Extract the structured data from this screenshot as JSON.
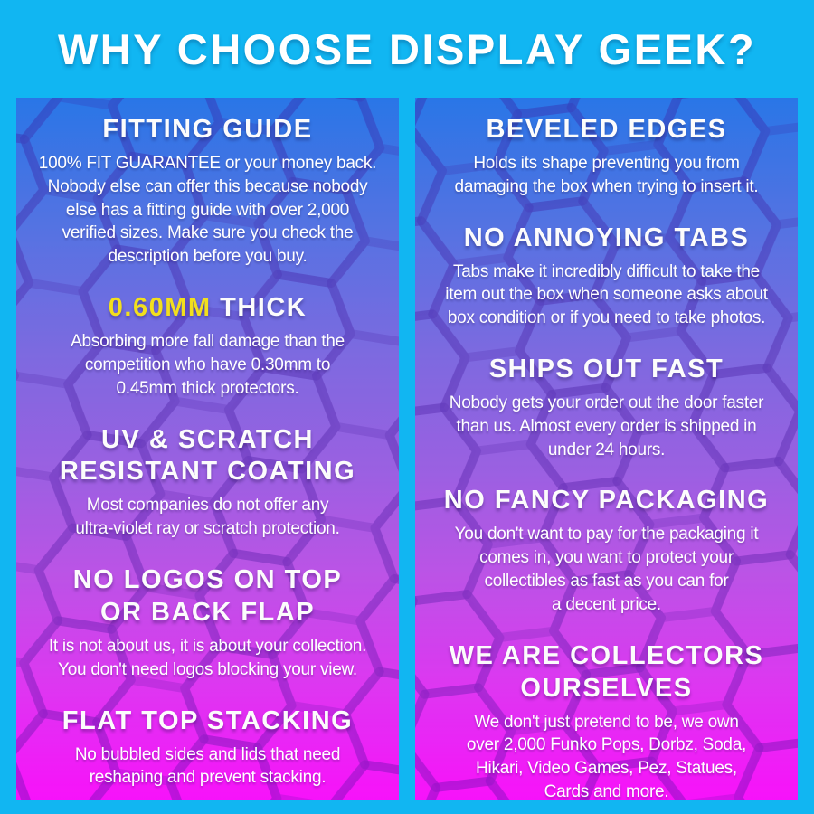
{
  "header": {
    "title": "WHY CHOOSE DISPLAY GEEK?"
  },
  "colors": {
    "frame_cyan": "#11B6F2",
    "gradient_top": "#1E6FE6",
    "gradient_middle": "#9358DF",
    "gradient_bottom": "#F705FA",
    "accent_yellow": "#F2DF1D",
    "text_white": "#FFFFFF"
  },
  "left_column": {
    "sections": [
      {
        "heading": "FITTING GUIDE",
        "body": "100% FIT GUARANTEE or your money back.\nNobody else can offer this because nobody\nelse has a fitting guide with over 2,000\nverified sizes. Make sure you check the\ndescription before you buy."
      },
      {
        "heading_accent": "0.60MM",
        "heading": "THICK",
        "body": "Absorbing more fall damage than the\ncompetition who have 0.30mm to\n0.45mm thick protectors."
      },
      {
        "heading": "UV & SCRATCH\nRESISTANT COATING",
        "body": "Most companies do not offer any\nultra-violet ray or scratch protection."
      },
      {
        "heading": "NO LOGOS ON TOP\nOR BACK FLAP",
        "body": "It is not about us, it is about your collection.\nYou don't need logos blocking your view."
      },
      {
        "heading": "FLAT TOP STACKING",
        "body": "No bubbled sides and lids that need\nreshaping and prevent stacking."
      }
    ]
  },
  "right_column": {
    "sections": [
      {
        "heading": "BEVELED EDGES",
        "body": "Holds its shape preventing you from\ndamaging the box when trying to insert it."
      },
      {
        "heading": "NO ANNOYING TABS",
        "body": "Tabs make it incredibly difficult to take the\nitem out the box when someone asks about\nbox condition or if you need to take photos."
      },
      {
        "heading": "SHIPS OUT FAST",
        "body": "Nobody gets your order out the door faster\nthan us. Almost every order is shipped in\nunder 24 hours."
      },
      {
        "heading": "NO FANCY PACKAGING",
        "body": "You don't want to pay for the packaging it\ncomes in, you want to protect your\ncollectibles as fast as you can for\na decent price."
      },
      {
        "heading": "WE ARE COLLECTORS\nOURSELVES",
        "body": "We don't just pretend to be, we own\nover 2,000 Funko Pops, Dorbz, Soda,\nHikari, Video Games, Pez, Statues,\nCards and more."
      }
    ]
  }
}
